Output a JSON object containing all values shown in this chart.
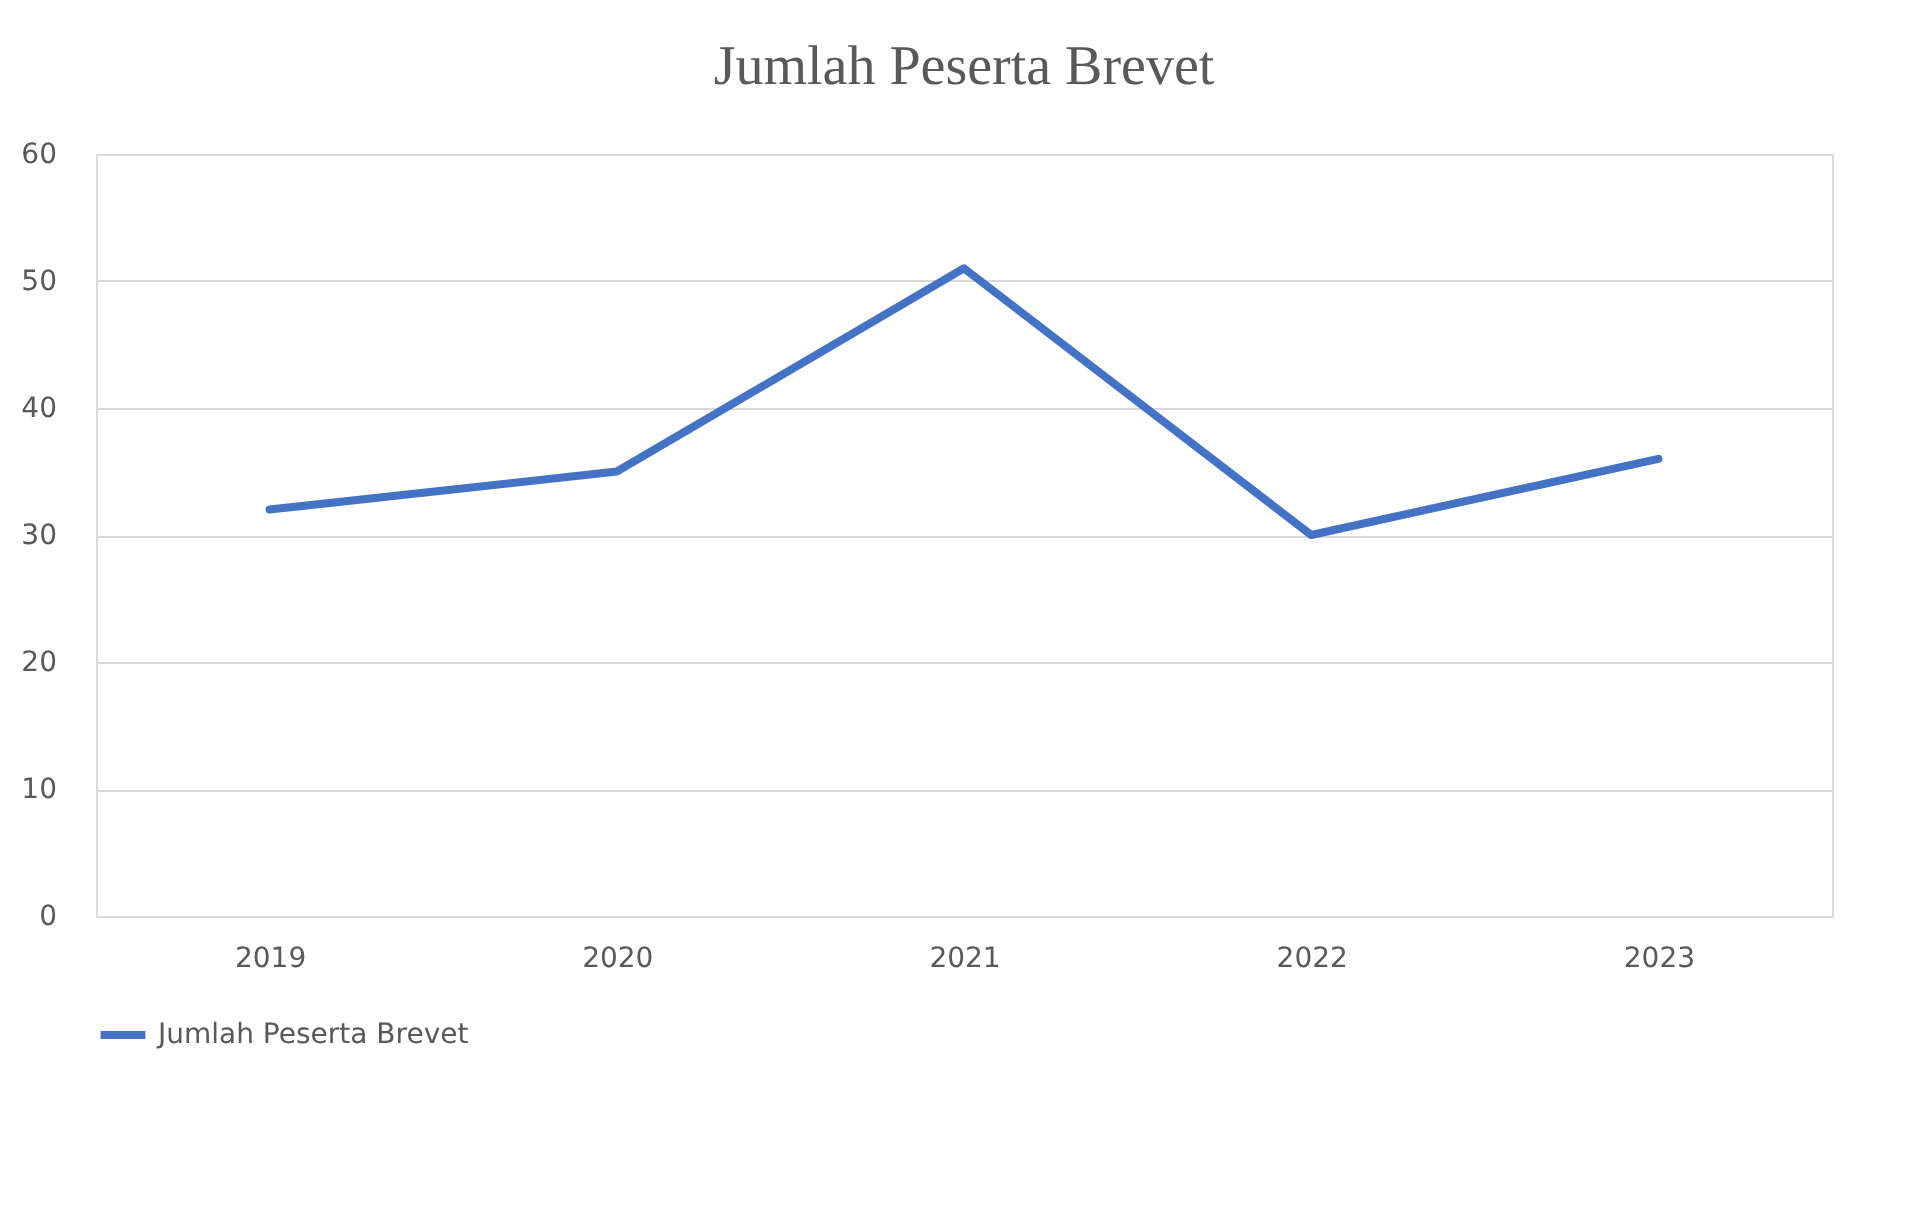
{
  "chart_data": {
    "type": "line",
    "title": "Jumlah Peserta Brevet",
    "categories": [
      "2019",
      "2020",
      "2021",
      "2022",
      "2023"
    ],
    "series": [
      {
        "name": "Jumlah Peserta Brevet",
        "color": "#4472c4",
        "values": [
          32,
          35,
          51,
          30,
          36
        ]
      }
    ],
    "ylim": [
      0,
      60
    ],
    "yticks": [
      0,
      10,
      20,
      30,
      40,
      50,
      60
    ],
    "grid": "y",
    "legend": "bottom"
  }
}
